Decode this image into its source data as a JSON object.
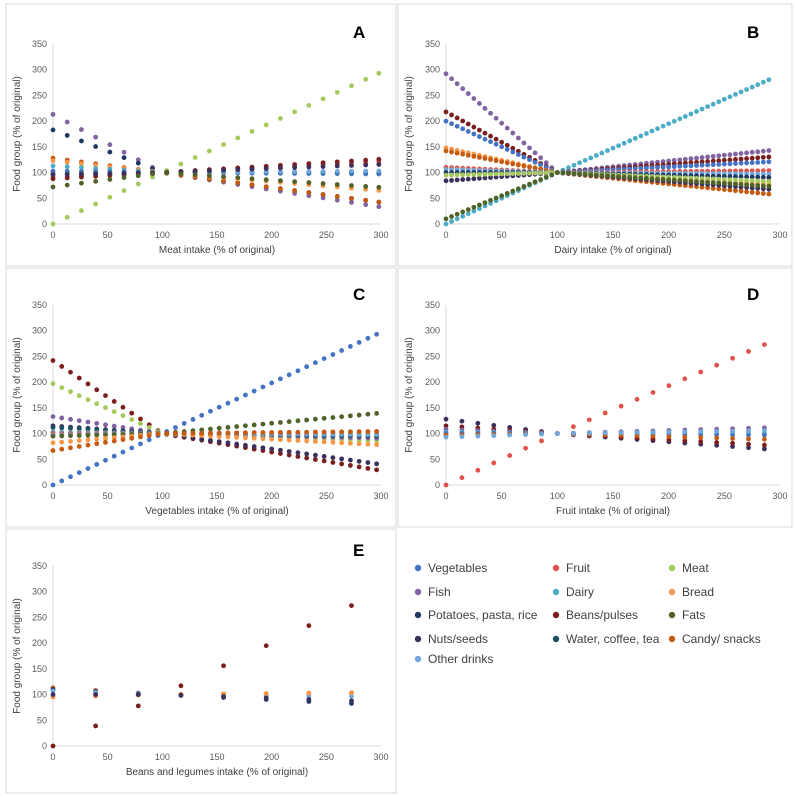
{
  "legend": [
    {
      "name": "Vegetables",
      "color": "#4472C4"
    },
    {
      "name": "Fruit",
      "color": "#E0524A"
    },
    {
      "name": "Meat",
      "color": "#A5C95A"
    },
    {
      "name": "Fish",
      "color": "#8064A2"
    },
    {
      "name": "Dairy",
      "color": "#4BACC6"
    },
    {
      "name": "Bread",
      "color": "#F79646"
    },
    {
      "name": "Potatoes, pasta, rice",
      "color": "#1F3864"
    },
    {
      "name": "Beans/pulses",
      "color": "#7B1E1E"
    },
    {
      "name": "Fats",
      "color": "#4F6228"
    },
    {
      "name": "Nuts/seeds",
      "color": "#3B2F5C"
    },
    {
      "name": "Water, coffee, tea",
      "color": "#1F4E5F"
    },
    {
      "name": "Candy/ snacks",
      "color": "#C55A11"
    },
    {
      "name": "Other drinks",
      "color": "#6FA8DC"
    }
  ],
  "chart_data": [
    {
      "type": "scatter",
      "panel": "A",
      "title": "",
      "xlabel": "Meat intake (% of original)",
      "ylabel": "Food group (% of original)",
      "xlim": [
        0,
        300
      ],
      "ylim": [
        0,
        350
      ],
      "xticks": [
        "0",
        "50",
        "100",
        "150",
        "200",
        "250",
        "300"
      ],
      "yticks": [
        "0",
        "50",
        "100",
        "150",
        "200",
        "250",
        "300",
        "350"
      ],
      "x": [
        0,
        13,
        26,
        39,
        52,
        65,
        78,
        91,
        104,
        117,
        130,
        143,
        156,
        169,
        182,
        195,
        208,
        221,
        234,
        247,
        260,
        273,
        286,
        298
      ],
      "series": [
        {
          "name": "Meat",
          "y0": 0,
          "y100": 100,
          "y300": 295
        },
        {
          "name": "Fish",
          "y0": 213,
          "y100": 100,
          "y300": 33
        },
        {
          "name": "Potatoes, pasta, rice",
          "y0": 183,
          "y100": 100,
          "y300": 42
        },
        {
          "name": "Candy/ snacks",
          "y0": 128,
          "y100": 100,
          "y300": 42
        },
        {
          "name": "Bread",
          "y0": 123,
          "y100": 100,
          "y300": 65
        },
        {
          "name": "Dairy",
          "y0": 113,
          "y100": 100,
          "y300": 97
        },
        {
          "name": "Vegetables",
          "y0": 103,
          "y100": 100,
          "y300": 98
        },
        {
          "name": "Water, coffee, tea",
          "y0": 98,
          "y100": 100,
          "y300": 102
        },
        {
          "name": "Other drinks",
          "y0": 97,
          "y100": 100,
          "y300": 103
        },
        {
          "name": "Fruit",
          "y0": 92,
          "y100": 100,
          "y300": 121
        },
        {
          "name": "Beans/pulses",
          "y0": 88,
          "y100": 100,
          "y300": 126
        },
        {
          "name": "Nuts/seeds",
          "y0": 96,
          "y100": 100,
          "y300": 116
        },
        {
          "name": "Fats",
          "y0": 72,
          "y100": 100,
          "y300": 71
        }
      ]
    },
    {
      "type": "scatter",
      "panel": "B",
      "title": "",
      "xlabel": "Dairy intake (% of original)",
      "ylabel": "Food group (% of original)",
      "xlim": [
        0,
        300
      ],
      "ylim": [
        0,
        350
      ],
      "xticks": [
        "0",
        "50",
        "100",
        "150",
        "200",
        "250",
        "300"
      ],
      "yticks": [
        "0",
        "50",
        "100",
        "150",
        "200",
        "250",
        "300",
        "350"
      ],
      "x": [
        0,
        5,
        10,
        15,
        20,
        25,
        30,
        35,
        40,
        45,
        50,
        55,
        60,
        65,
        70,
        75,
        80,
        85,
        90,
        95,
        100,
        105,
        110,
        115,
        120,
        125,
        130,
        135,
        140,
        145,
        150,
        155,
        160,
        165,
        170,
        175,
        180,
        185,
        190,
        195,
        200,
        205,
        210,
        215,
        220,
        225,
        230,
        235,
        240,
        245,
        250,
        255,
        260,
        265,
        270,
        275,
        280,
        285,
        290
      ],
      "series": [
        {
          "name": "Dairy",
          "y0": 0,
          "y100": 100,
          "y300": 290
        },
        {
          "name": "Fish",
          "y0": 292,
          "y100": 100,
          "y300": 145
        },
        {
          "name": "Beans/pulses",
          "y0": 218,
          "y100": 100,
          "y300": 132
        },
        {
          "name": "Vegetables",
          "y0": 200,
          "y100": 100,
          "y300": 122
        },
        {
          "name": "Bread",
          "y0": 148,
          "y100": 100,
          "y300": 76
        },
        {
          "name": "Candy/ snacks",
          "y0": 142,
          "y100": 100,
          "y300": 56
        },
        {
          "name": "Fruit",
          "y0": 110,
          "y100": 100,
          "y300": 104
        },
        {
          "name": "Other drinks",
          "y0": 106,
          "y100": 100,
          "y300": 97
        },
        {
          "name": "Potatoes, pasta, rice",
          "y0": 100,
          "y100": 100,
          "y300": 90
        },
        {
          "name": "Nuts/seeds",
          "y0": 84,
          "y100": 100,
          "y300": 66
        },
        {
          "name": "Meat",
          "y0": 95,
          "y100": 100,
          "y300": 82
        },
        {
          "name": "Fats",
          "y0": 10,
          "y100": 100,
          "y300": 72
        }
      ]
    },
    {
      "type": "scatter",
      "panel": "C",
      "title": "",
      "xlabel": "Vegetables intake (% of original)",
      "ylabel": "Food group (% of original)",
      "xlim": [
        0,
        300
      ],
      "ylim": [
        0,
        350
      ],
      "xticks": [
        "0",
        "50",
        "100",
        "150",
        "200",
        "250",
        "300"
      ],
      "yticks": [
        "0",
        "50",
        "100",
        "150",
        "200",
        "250",
        "300",
        "350"
      ],
      "x": [
        0,
        8,
        16,
        24,
        32,
        40,
        48,
        56,
        64,
        72,
        80,
        88,
        96,
        104,
        112,
        120,
        128,
        136,
        144,
        152,
        160,
        168,
        176,
        184,
        192,
        200,
        208,
        216,
        224,
        232,
        240,
        248,
        256,
        264,
        272,
        280,
        288,
        296
      ],
      "series": [
        {
          "name": "Vegetables",
          "y0": 0,
          "y100": 100,
          "y300": 297
        },
        {
          "name": "Beans/pulses",
          "y0": 242,
          "y100": 100,
          "y300": 28
        },
        {
          "name": "Meat",
          "y0": 197,
          "y100": 100,
          "y300": 86
        },
        {
          "name": "Fish",
          "y0": 133,
          "y100": 100,
          "y300": 91
        },
        {
          "name": "Nuts/seeds",
          "y0": 115,
          "y100": 100,
          "y300": 40
        },
        {
          "name": "Water, coffee, tea",
          "y0": 112,
          "y100": 100,
          "y300": 95
        },
        {
          "name": "Dairy",
          "y0": 103,
          "y100": 100,
          "y300": 100
        },
        {
          "name": "Fruit",
          "y0": 100,
          "y100": 100,
          "y300": 104
        },
        {
          "name": "Other drinks",
          "y0": 97,
          "y100": 100,
          "y300": 98
        },
        {
          "name": "Fats",
          "y0": 95,
          "y100": 100,
          "y300": 140
        },
        {
          "name": "Bread",
          "y0": 82,
          "y100": 100,
          "y300": 78
        },
        {
          "name": "Candy/ snacks",
          "y0": 67,
          "y100": 100,
          "y300": 104
        }
      ]
    },
    {
      "type": "scatter",
      "panel": "D",
      "title": "",
      "xlabel": "Fruit intake (% of original)",
      "ylabel": "Food group (% of original)",
      "xlim": [
        0,
        300
      ],
      "ylim": [
        0,
        350
      ],
      "xticks": [
        "0",
        "50",
        "100",
        "150",
        "200",
        "250",
        "300"
      ],
      "yticks": [
        "0",
        "50",
        "100",
        "150",
        "200",
        "250",
        "300",
        "350"
      ],
      "x": [
        0,
        14.3,
        28.6,
        42.9,
        57.2,
        71.5,
        85.8,
        100,
        114.4,
        128.7,
        143,
        157.3,
        171.6,
        185.9,
        200.2,
        214.5,
        228.8,
        243.1,
        257.4,
        271.7,
        286
      ],
      "series": [
        {
          "name": "Fruit",
          "y0": 0,
          "y100": 100,
          "y300": 286
        },
        {
          "name": "Nuts/seeds",
          "y0": 128,
          "y100": 100,
          "y300": 68
        },
        {
          "name": "Beans/pulses",
          "y0": 115,
          "y100": 100,
          "y300": 76
        },
        {
          "name": "Fish",
          "y0": 108,
          "y100": 100,
          "y300": 112
        },
        {
          "name": "Dairy",
          "y0": 103,
          "y100": 100,
          "y300": 102
        },
        {
          "name": "Vegetables",
          "y0": 100,
          "y100": 100,
          "y300": 97
        },
        {
          "name": "Candy/ snacks",
          "y0": 97,
          "y100": 100,
          "y300": 88
        },
        {
          "name": "Other drinks",
          "y0": 93,
          "y100": 100,
          "y300": 106
        }
      ]
    },
    {
      "type": "scatter",
      "panel": "E",
      "title": "",
      "xlabel": "Beans and legumes intake (% of original)",
      "ylabel": "Food group (% of original)",
      "xlim": [
        0,
        300
      ],
      "ylim": [
        0,
        350
      ],
      "xticks": [
        "0",
        "50",
        "100",
        "150",
        "200",
        "250",
        "300"
      ],
      "yticks": [
        "0",
        "50",
        "100",
        "150",
        "200",
        "250",
        "300",
        "350"
      ],
      "x": [
        0,
        39,
        78,
        117,
        156,
        195,
        234,
        273
      ],
      "series": [
        {
          "name": "Beans/pulses",
          "y0": 0,
          "y100": 100,
          "y300": 300
        },
        {
          "name": "Candy/ snacks",
          "y0": 113,
          "y100": 100,
          "y300": 104
        },
        {
          "name": "Potatoes, pasta, rice",
          "y0": 110,
          "y100": 100,
          "y300": 80
        },
        {
          "name": "Other drinks",
          "y0": 107,
          "y100": 100,
          "y300": 96
        },
        {
          "name": "Bread",
          "y0": 95,
          "y100": 100,
          "y300": 104
        },
        {
          "name": "Nuts/seeds",
          "y0": 100,
          "y100": 100,
          "y300": 86
        }
      ]
    }
  ]
}
